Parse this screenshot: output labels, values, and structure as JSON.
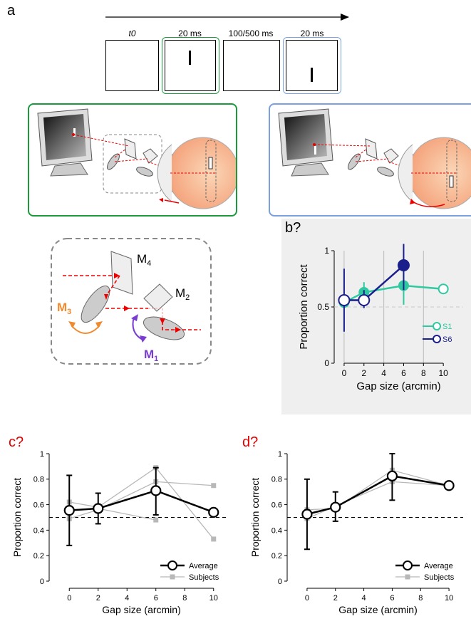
{
  "panel_labels": {
    "a": "a",
    "b": "b?",
    "c": "c?",
    "d": "d?"
  },
  "timeline": {
    "frames": [
      {
        "label": "t0"
      },
      {
        "label": "20 ms"
      },
      {
        "label": "100/500 ms"
      },
      {
        "label": "20 ms"
      }
    ]
  },
  "mirror_diagram": {
    "m4_label": "M",
    "m4_sub": "4",
    "m2_label": "M",
    "m2_sub": "2",
    "m3_label": "M",
    "m3_sub": "3",
    "m1_label": "M",
    "m1_sub": "1"
  },
  "colors": {
    "green_frame": "#1a9a3a",
    "blue_frame": "#7aa0e0",
    "s1": "#2ec9a0",
    "s6": "#1a1f8c",
    "m3_orange": "#f08a30",
    "m1_purple": "#7a3ccf",
    "ray_red": "#e00000"
  },
  "chart_data": [
    {
      "id": "b",
      "type": "line",
      "xlabel": "Gap size (arcmin)",
      "ylabel": "Proportion correct",
      "xlim": [
        -1,
        12
      ],
      "ylim": [
        0,
        1
      ],
      "xticks": [
        0,
        2,
        4,
        6,
        8,
        10
      ],
      "yticks": [
        0,
        0.5,
        1
      ],
      "ytick_labels": [
        "0",
        "0.5",
        "1"
      ],
      "chance": 0.5,
      "legend_position": "bottom-right",
      "series": [
        {
          "name": "S1",
          "color": "#2ec9a0",
          "x": [
            0,
            2,
            6,
            10
          ],
          "y": [
            0.54,
            0.63,
            0.69,
            0.66
          ],
          "err": [
            [
              0.5,
              0.58
            ],
            [
              0.56,
              0.72
            ],
            [
              0.52,
              0.86
            ],
            [
              0.66,
              0.66
            ]
          ],
          "filled": [
            true,
            true,
            true,
            false
          ]
        },
        {
          "name": "S6",
          "color": "#1a1f8c",
          "x": [
            0,
            2,
            6
          ],
          "y": [
            0.56,
            0.56,
            0.87
          ],
          "err": [
            [
              0.28,
              0.84
            ],
            [
              0.49,
              0.65
            ],
            [
              0.65,
              1.06
            ]
          ],
          "filled": [
            false,
            false,
            true
          ]
        }
      ]
    },
    {
      "id": "c",
      "type": "line",
      "xlabel": "Gap size (arcmin)",
      "ylabel": "Proportion correct",
      "xlim": [
        -1,
        11
      ],
      "ylim": [
        0,
        1
      ],
      "xticks": [
        0,
        2,
        4,
        6,
        8,
        10
      ],
      "yticks": [
        0,
        0.2,
        0.4,
        0.6,
        0.8,
        1
      ],
      "ytick_labels": [
        "0",
        "0.2",
        "0.4",
        "0.6",
        "0.8",
        "1"
      ],
      "chance": 0.5,
      "legend_position": "bottom-right",
      "average": {
        "name": "Average",
        "x": [
          0,
          2,
          6,
          10
        ],
        "y": [
          0.555,
          0.57,
          0.71,
          0.54
        ],
        "err": [
          [
            0.28,
            0.83
          ],
          [
            0.45,
            0.69
          ],
          [
            0.52,
            0.89
          ],
          [
            0.54,
            0.54
          ]
        ]
      },
      "subjects_name": "Subjects",
      "subjects": [
        {
          "x": [
            0,
            2,
            6,
            10
          ],
          "y": [
            0.62,
            0.58,
            0.89,
            0.33
          ]
        },
        {
          "x": [
            0,
            2,
            6,
            10
          ],
          "y": [
            0.49,
            0.56,
            0.78,
            0.75
          ]
        },
        {
          "x": [
            0,
            2,
            6
          ],
          "y": [
            0.56,
            0.57,
            0.48
          ]
        }
      ]
    },
    {
      "id": "d",
      "type": "line",
      "xlabel": "Gap size (arcmin)",
      "ylabel": "Proportion correct",
      "xlim": [
        -1,
        11
      ],
      "ylim": [
        0,
        1
      ],
      "xticks": [
        0,
        2,
        4,
        6,
        8,
        10
      ],
      "yticks": [
        0,
        0.2,
        0.4,
        0.6,
        0.8,
        1
      ],
      "ytick_labels": [
        "0",
        "0.2",
        "0.4",
        "0.6",
        "0.8",
        "1"
      ],
      "chance": 0.5,
      "legend_position": "bottom-right",
      "average": {
        "name": "Average",
        "x": [
          0,
          2,
          6,
          10
        ],
        "y": [
          0.525,
          0.58,
          0.825,
          0.75
        ],
        "err": [
          [
            0.25,
            0.8
          ],
          [
            0.47,
            0.7
          ],
          [
            0.635,
            1.0
          ],
          [
            0.75,
            0.75
          ]
        ]
      },
      "subjects_name": "Subjects",
      "subjects": [
        {
          "x": [
            0,
            2,
            6,
            10
          ],
          "y": [
            0.56,
            0.57,
            0.87,
            0.75
          ]
        },
        {
          "x": [
            0,
            2,
            6,
            10
          ],
          "y": [
            0.49,
            0.59,
            0.78,
            0.75
          ]
        }
      ]
    }
  ]
}
